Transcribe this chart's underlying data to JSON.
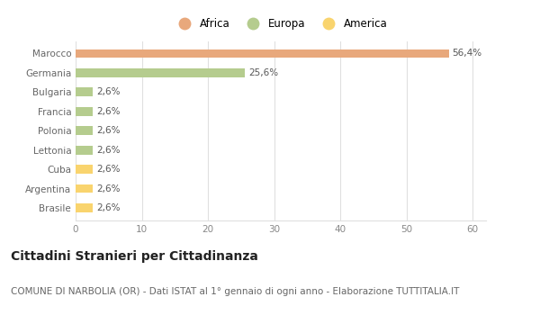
{
  "categories": [
    "Brasile",
    "Argentina",
    "Cuba",
    "Lettonia",
    "Polonia",
    "Francia",
    "Bulgaria",
    "Germania",
    "Marocco"
  ],
  "values": [
    2.6,
    2.6,
    2.6,
    2.6,
    2.6,
    2.6,
    2.6,
    25.6,
    56.4
  ],
  "colors": [
    "#f9d46e",
    "#f9d46e",
    "#f9d46e",
    "#b5cc8e",
    "#b5cc8e",
    "#b5cc8e",
    "#b5cc8e",
    "#b5cc8e",
    "#e8a87c"
  ],
  "labels": [
    "2,6%",
    "2,6%",
    "2,6%",
    "2,6%",
    "2,6%",
    "2,6%",
    "2,6%",
    "25,6%",
    "56,4%"
  ],
  "legend": [
    {
      "label": "Africa",
      "color": "#e8a87c"
    },
    {
      "label": "Europa",
      "color": "#b5cc8e"
    },
    {
      "label": "America",
      "color": "#f9d46e"
    }
  ],
  "xlim": [
    0,
    62
  ],
  "xticks": [
    0,
    10,
    20,
    30,
    40,
    50,
    60
  ],
  "title": "Cittadini Stranieri per Cittadinanza",
  "subtitle": "COMUNE DI NARBOLIA (OR) - Dati ISTAT al 1° gennaio di ogni anno - Elaborazione TUTTITALIA.IT",
  "background_color": "#ffffff",
  "grid_color": "#e0e0e0",
  "bar_height": 0.45,
  "label_fontsize": 7.5,
  "tick_fontsize": 7.5,
  "legend_fontsize": 8.5,
  "title_fontsize": 10,
  "subtitle_fontsize": 7.5
}
